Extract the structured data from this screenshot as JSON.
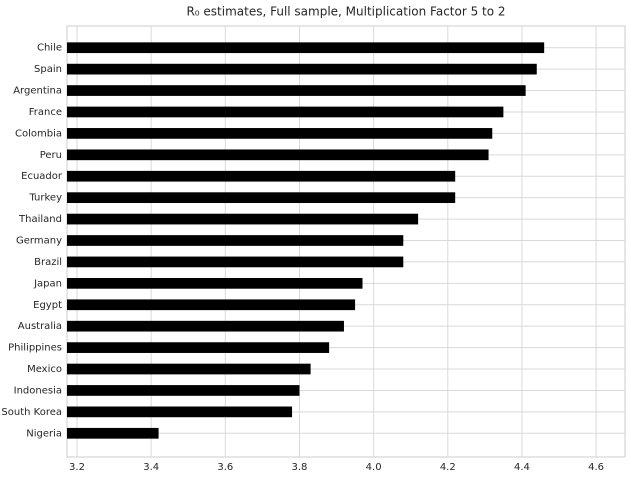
{
  "chart_data": {
    "type": "barh",
    "title": "R₀ estimates, Full sample, Multiplication Factor 5 to 2",
    "categories": [
      "Chile",
      "Spain",
      "Argentina",
      "France",
      "Colombia",
      "Peru",
      "Ecuador",
      "Turkey",
      "Thailand",
      "Germany",
      "Brazil",
      "Japan",
      "Egypt",
      "Australia",
      "Philippines",
      "Mexico",
      "Indonesia",
      "South Korea",
      "Nigeria"
    ],
    "values": [
      4.46,
      4.44,
      4.41,
      4.35,
      4.32,
      4.31,
      4.22,
      4.22,
      4.12,
      4.08,
      4.08,
      3.97,
      3.95,
      3.92,
      3.88,
      3.83,
      3.8,
      3.78,
      3.42
    ],
    "color": "#000000",
    "xlim": [
      3.173,
      4.678
    ],
    "xticks": [
      {
        "value": 3.2,
        "label": "3.2"
      },
      {
        "value": 3.4,
        "label": "3.4"
      },
      {
        "value": 3.6,
        "label": "3.6"
      },
      {
        "value": 3.8,
        "label": "3.8"
      },
      {
        "value": 4.0,
        "label": "4.0"
      },
      {
        "value": 4.2,
        "label": "4.2"
      },
      {
        "value": 4.4,
        "label": "4.4"
      },
      {
        "value": 4.6,
        "label": "4.6"
      }
    ],
    "grid": true
  }
}
